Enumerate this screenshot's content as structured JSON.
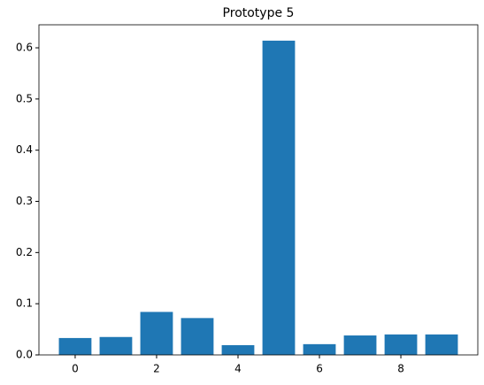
{
  "chart_data": {
    "type": "bar",
    "title": "Prototype 5",
    "x": [
      0,
      1,
      2,
      3,
      4,
      5,
      6,
      7,
      8,
      9
    ],
    "values": [
      0.033,
      0.035,
      0.084,
      0.072,
      0.019,
      0.614,
      0.021,
      0.038,
      0.04,
      0.04
    ],
    "color": "#1f77b4",
    "xlim": [
      -0.89,
      9.89
    ],
    "xticks": [
      0,
      2,
      4,
      6,
      8
    ],
    "ylim": [
      0,
      0.645
    ],
    "yticks": [
      {
        "value": 0,
        "label": "0.0"
      },
      0.1,
      0.2,
      0.3,
      0.4,
      0.5,
      0.6
    ],
    "grid": false
  }
}
